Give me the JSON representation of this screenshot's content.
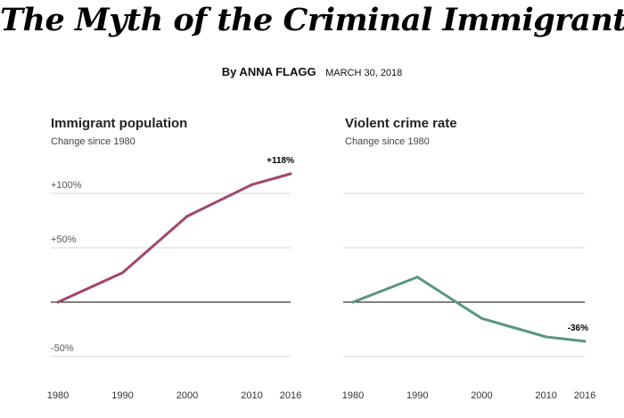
{
  "headline": "The Myth of the Criminal Immigrant",
  "byline": {
    "author": "By ANNA FLAGG",
    "date": "MARCH 30, 2018"
  },
  "chart_data": [
    {
      "type": "line",
      "title": "Immigrant population",
      "subtitle": "Change since 1980",
      "x": [
        1980,
        1990,
        2000,
        2010,
        2016
      ],
      "values": [
        0,
        27,
        79,
        108,
        118
      ],
      "end_label": "+118%",
      "color": "#a0466f",
      "ylim": [
        -50,
        118
      ],
      "y_ticks": [
        100,
        50,
        0,
        -50
      ],
      "y_tick_labels": [
        "+100%",
        "+50%",
        "",
        "-50%"
      ],
      "x_tick_labels": [
        "1980",
        "1990",
        "2000",
        "2010",
        "2016"
      ],
      "grid": true
    },
    {
      "type": "line",
      "title": "Violent crime rate",
      "subtitle": "Change since 1980",
      "x": [
        1980,
        1990,
        2000,
        2010,
        2016
      ],
      "values": [
        0,
        23,
        -15,
        -32,
        -36
      ],
      "end_label": "-36%",
      "color": "#5a9580",
      "ylim": [
        -50,
        118
      ],
      "y_ticks": [
        100,
        50,
        0,
        -50
      ],
      "x_tick_labels": [
        "1980",
        "1990",
        "2000",
        "2010",
        "2016"
      ],
      "grid": true
    }
  ]
}
